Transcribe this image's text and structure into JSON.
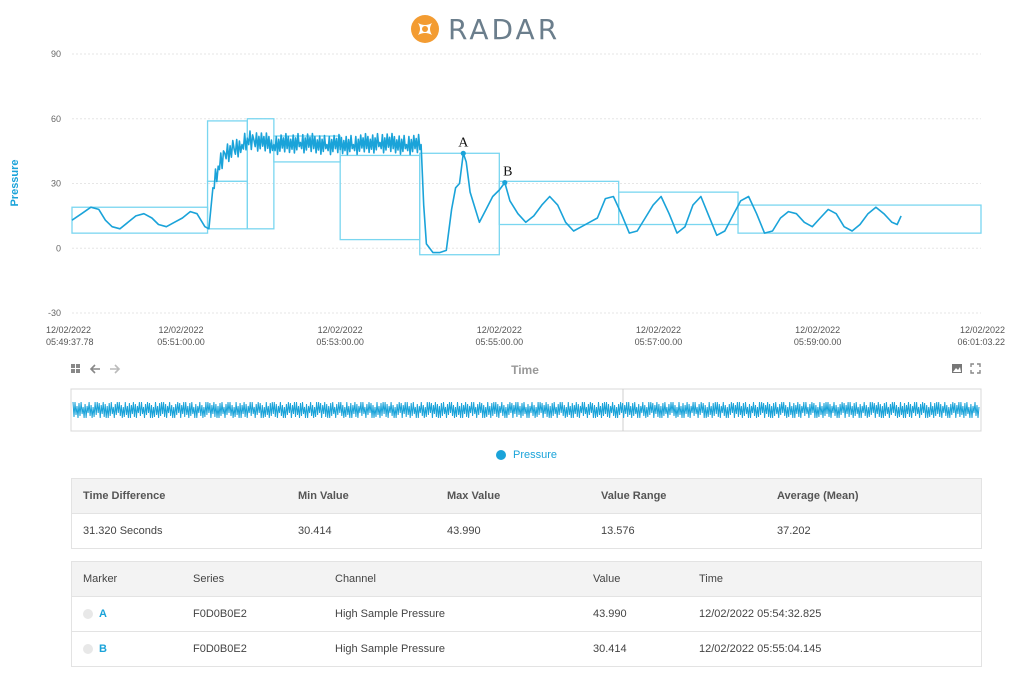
{
  "logo": {
    "text": "RADAR",
    "icon": "radar-logo-icon",
    "color": "#f39c32"
  },
  "chart_data": {
    "type": "line",
    "ylabel": "Pressure",
    "xlabel": "Time",
    "ylim": [
      -30,
      90
    ],
    "yticks": [
      90,
      60,
      30,
      0,
      -30
    ],
    "xlim": [
      "2022-12-02 05:49:37.78",
      "2022-12-02 06:01:03.22"
    ],
    "xticks": [
      {
        "date": "12/02/2022",
        "time": "05:49:37.78",
        "t": "05:49:37.78"
      },
      {
        "date": "12/02/2022",
        "time": "05:51:00.00",
        "t": "05:51:00.00"
      },
      {
        "date": "12/02/2022",
        "time": "05:53:00.00",
        "t": "05:53:00.00"
      },
      {
        "date": "12/02/2022",
        "time": "05:55:00.00",
        "t": "05:55:00.00"
      },
      {
        "date": "12/02/2022",
        "time": "05:57:00.00",
        "t": "05:57:00.00"
      },
      {
        "date": "12/02/2022",
        "time": "05:59:00.00",
        "t": "05:59:00.00"
      },
      {
        "date": "12/02/2022",
        "time": "06:01:03.22",
        "t": "06:01:03.22"
      }
    ],
    "grid": true,
    "legend": "bottom-center",
    "color": "#1aa3d9",
    "envelope_color": "#7ad6f0",
    "series": [
      {
        "name": "Pressure",
        "points": [
          [
            "05:49:37.78",
            13
          ],
          [
            "05:49:45",
            16
          ],
          [
            "05:49:52",
            19
          ],
          [
            "05:49:58",
            18
          ],
          [
            "05:50:03",
            13
          ],
          [
            "05:50:08",
            10
          ],
          [
            "05:50:14",
            9
          ],
          [
            "05:50:20",
            12
          ],
          [
            "05:50:26",
            15
          ],
          [
            "05:50:32",
            16
          ],
          [
            "05:50:38",
            14
          ],
          [
            "05:50:43",
            11
          ],
          [
            "05:50:49",
            10
          ],
          [
            "05:50:55",
            12
          ],
          [
            "05:51:01",
            14
          ],
          [
            "05:51:07",
            17
          ],
          [
            "05:51:12",
            16
          ],
          [
            "05:51:18",
            10
          ],
          [
            "05:51:21",
            9
          ],
          [
            "05:51:24",
            28
          ],
          [
            "05:51:28",
            38
          ],
          [
            "05:51:33",
            44
          ],
          [
            "05:51:40",
            46
          ],
          [
            "05:51:46",
            48
          ],
          [
            "05:51:50",
            51
          ],
          [
            "05:51:55",
            50
          ],
          [
            "05:52:10",
            48
          ],
          [
            "05:52:30",
            49
          ],
          [
            "05:52:50",
            48
          ],
          [
            "05:53:10",
            48
          ],
          [
            "05:53:30",
            49
          ],
          [
            "05:53:50",
            48
          ],
          [
            "05:54:01",
            48
          ],
          [
            "05:54:03",
            20
          ],
          [
            "05:54:05",
            2
          ],
          [
            "05:54:10",
            -2
          ],
          [
            "05:54:15",
            -2
          ],
          [
            "05:54:20",
            -1
          ],
          [
            "05:54:24",
            18
          ],
          [
            "05:54:27",
            28
          ],
          [
            "05:54:30",
            30
          ],
          [
            "05:54:32.825",
            43.99
          ],
          [
            "05:54:35",
            40
          ],
          [
            "05:54:38",
            26
          ],
          [
            "05:54:41",
            20
          ],
          [
            "05:54:45",
            12
          ],
          [
            "05:54:50",
            18
          ],
          [
            "05:54:55",
            24
          ],
          [
            "05:55:00",
            27
          ],
          [
            "05:55:04.145",
            30.414
          ],
          [
            "05:55:08",
            22
          ],
          [
            "05:55:14",
            16
          ],
          [
            "05:55:20",
            12
          ],
          [
            "05:55:26",
            15
          ],
          [
            "05:55:32",
            20
          ],
          [
            "05:55:38",
            24
          ],
          [
            "05:55:44",
            20
          ],
          [
            "05:55:50",
            12
          ],
          [
            "05:55:56",
            8
          ],
          [
            "05:56:02",
            10
          ],
          [
            "05:56:08",
            12
          ],
          [
            "05:56:14",
            14
          ],
          [
            "05:56:20",
            23
          ],
          [
            "05:56:26",
            24
          ],
          [
            "05:56:32",
            16
          ],
          [
            "05:56:38",
            7
          ],
          [
            "05:56:44",
            8
          ],
          [
            "05:56:50",
            14
          ],
          [
            "05:56:56",
            20
          ],
          [
            "05:57:02",
            24
          ],
          [
            "05:57:08",
            16
          ],
          [
            "05:57:14",
            7
          ],
          [
            "05:57:20",
            10
          ],
          [
            "05:57:26",
            20
          ],
          [
            "05:57:32",
            24
          ],
          [
            "05:57:38",
            15
          ],
          [
            "05:57:44",
            6
          ],
          [
            "05:57:50",
            8
          ],
          [
            "05:57:56",
            15
          ],
          [
            "05:58:02",
            22
          ],
          [
            "05:58:08",
            24
          ],
          [
            "05:58:14",
            16
          ],
          [
            "05:58:20",
            7
          ],
          [
            "05:58:26",
            8
          ],
          [
            "05:58:32",
            14
          ],
          [
            "05:58:38",
            17
          ],
          [
            "05:58:44",
            16
          ],
          [
            "05:58:50",
            12
          ],
          [
            "05:58:56",
            10
          ],
          [
            "05:59:02",
            14
          ],
          [
            "05:59:08",
            18
          ],
          [
            "05:59:14",
            16
          ],
          [
            "05:59:20",
            10
          ],
          [
            "05:59:26",
            8
          ],
          [
            "05:59:32",
            11
          ],
          [
            "05:59:38",
            16
          ],
          [
            "05:59:44",
            19
          ],
          [
            "05:59:50",
            16
          ],
          [
            "05:59:56",
            12
          ],
          [
            "06:00:00",
            11
          ],
          [
            "06:00:03",
            15
          ]
        ],
        "envelope_rects": [
          {
            "x0": "05:49:37.78",
            "x1": "05:51:20",
            "y0": 7,
            "y1": 19
          },
          {
            "x0": "05:51:20",
            "x1": "05:51:50",
            "y0": 31,
            "y1": 59
          },
          {
            "x0": "05:51:20",
            "x1": "05:51:50",
            "y0": 9,
            "y1": 31
          },
          {
            "x0": "05:51:50",
            "x1": "05:52:10",
            "y0": 9,
            "y1": 60
          },
          {
            "x0": "05:52:10",
            "x1": "05:53:00",
            "y0": 40,
            "y1": 52
          },
          {
            "x0": "05:53:00",
            "x1": "05:54:00",
            "y0": 4,
            "y1": 43
          },
          {
            "x0": "05:54:00",
            "x1": "05:55:00",
            "y0": -3,
            "y1": 44
          },
          {
            "x0": "05:55:00",
            "x1": "05:56:30",
            "y0": 11,
            "y1": 31
          },
          {
            "x0": "05:56:30",
            "x1": "05:58:00",
            "y0": 11,
            "y1": 26
          },
          {
            "x0": "05:58:00",
            "x1": "06:01:03.22",
            "y0": 7,
            "y1": 20
          }
        ]
      }
    ],
    "annotations": [
      {
        "label": "A",
        "x": "05:54:32.825",
        "y": 43.99
      },
      {
        "label": "B",
        "x": "05:55:04.145",
        "y": 30.414
      }
    ]
  },
  "toolbar": {
    "left_icons": [
      "grid-icon",
      "arrow-left-icon",
      "arrow-right-icon"
    ],
    "right_icons": [
      "image-icon",
      "fullscreen-icon"
    ]
  },
  "legend": {
    "label": "Pressure"
  },
  "stats": {
    "headers": [
      "Time Difference",
      "Min Value",
      "Max Value",
      "Value Range",
      "Average (Mean)"
    ],
    "values": [
      "31.320 Seconds",
      "30.414",
      "43.990",
      "13.576",
      "37.202"
    ]
  },
  "markers": {
    "headers": [
      "Marker",
      "Series",
      "Channel",
      "Value",
      "Time"
    ],
    "rows": [
      {
        "marker": "A",
        "series": "F0D0B0E2",
        "channel": "High Sample Pressure",
        "value": "43.990",
        "time": "12/02/2022 05:54:32.825"
      },
      {
        "marker": "B",
        "series": "F0D0B0E2",
        "channel": "High Sample Pressure",
        "value": "30.414",
        "time": "12/02/2022 05:55:04.145"
      }
    ]
  }
}
